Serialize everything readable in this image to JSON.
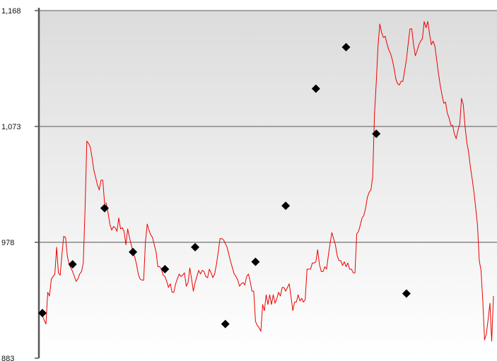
{
  "chart_data": {
    "type": "line",
    "title": "",
    "xlabel": "",
    "ylabel": "",
    "ylim": [
      883,
      1168
    ],
    "y_ticks": [
      883,
      978,
      1073,
      1168
    ],
    "y_tick_labels": [
      "883",
      "978",
      "1,073",
      "1,168"
    ],
    "grid": true,
    "legend": "none",
    "colors": {
      "line": "#ee0000",
      "marker": "#000000",
      "grid": "#888888",
      "axis": "#555555"
    },
    "series": [
      {
        "values": [
          918,
          914,
          911,
          937,
          934,
          948,
          950,
          952,
          974,
          953,
          951,
          968,
          983,
          982,
          967,
          960,
          957,
          954,
          950,
          946,
          948,
          952,
          954,
          961,
          1005,
          1061,
          1059,
          1056,
          1047,
          1037,
          1031,
          1025,
          1021,
          1029,
          1029,
          1010,
          1010,
          1002,
          993,
          988,
          991,
          990,
          987,
          998,
          989,
          990,
          987,
          976,
          989,
          982,
          976,
          970,
          966,
          960,
          952,
          948,
          947,
          947,
          978,
          993,
          988,
          984,
          982,
          976,
          970,
          958,
          958,
          956,
          951,
          950,
          946,
          941,
          944,
          937,
          937,
          944,
          948,
          952,
          950,
          951,
          953,
          942,
          945,
          957,
          948,
          938,
          945,
          950,
          955,
          952,
          955,
          954,
          950,
          949,
          956,
          953,
          949,
          952,
          960,
          970,
          981,
          981,
          980,
          977,
          974,
          968,
          962,
          957,
          952,
          950,
          947,
          942,
          944,
          945,
          943,
          950,
          952,
          946,
          938,
          938,
          913,
          910,
          908,
          905,
          927,
          922,
          935,
          927,
          935,
          927,
          935,
          928,
          932,
          937,
          934,
          941,
          941,
          938,
          941,
          944,
          933,
          922,
          929,
          929,
          935,
          930,
          932,
          929,
          931,
          956,
          956,
          956,
          961,
          961,
          962,
          972,
          960,
          954,
          954,
          958,
          956,
          967,
          977,
          986,
          981,
          976,
          967,
          963,
          963,
          959,
          962,
          958,
          961,
          956,
          956,
          953,
          953,
          985,
          987,
          992,
          998,
          1000,
          1006,
          1015,
          1019,
          1021,
          1032,
          1083,
          1109,
          1139,
          1157,
          1150,
          1146,
          1147,
          1141,
          1136,
          1133,
          1128,
          1121,
          1112,
          1108,
          1107,
          1110,
          1110,
          1119,
          1128,
          1141,
          1153,
          1153,
          1140,
          1131,
          1135,
          1140,
          1143,
          1145,
          1159,
          1154,
          1159,
          1149,
          1140,
          1143,
          1139,
          1128,
          1117,
          1107,
          1099,
          1092,
          1093,
          1084,
          1080,
          1074,
          1074,
          1067,
          1063,
          1070,
          1075,
          1096,
          1091,
          1073,
          1060,
          1052,
          1040,
          1030,
          1019,
          1006,
          992,
          963,
          955,
          930,
          898,
          903,
          915,
          928,
          897,
          934
        ]
      }
    ],
    "markers": [
      {
        "index": 0,
        "value": 920
      },
      {
        "index": 17,
        "value": 960
      },
      {
        "index": 35,
        "value": 1006
      },
      {
        "index": 51,
        "value": 970
      },
      {
        "index": 69,
        "value": 956
      },
      {
        "index": 86,
        "value": 974
      },
      {
        "index": 103,
        "value": 911
      },
      {
        "index": 120,
        "value": 962
      },
      {
        "index": 137,
        "value": 1008
      },
      {
        "index": 154,
        "value": 1104
      },
      {
        "index": 171,
        "value": 1138
      },
      {
        "index": 188,
        "value": 1067
      },
      {
        "index": 205,
        "value": 936
      }
    ]
  }
}
